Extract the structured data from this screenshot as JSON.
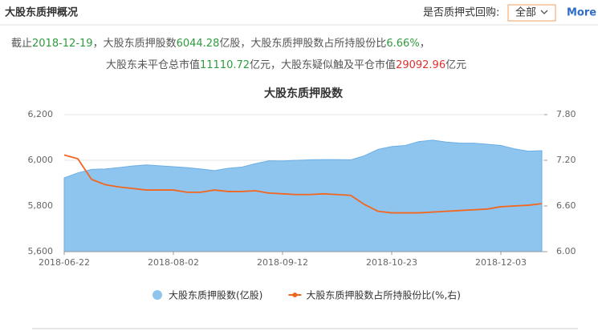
{
  "header": {
    "title": "大股东质押概况",
    "filter_label": "是否质押式回购:",
    "filter_value": "全部",
    "more": "More"
  },
  "summary": {
    "line1": [
      {
        "text": "截止",
        "color": "#555555"
      },
      {
        "text": "2018-12-19",
        "color": "#2e9b3e"
      },
      {
        "text": "，大股东质押股数",
        "color": "#555555"
      },
      {
        "text": "6044.28",
        "color": "#2e9b3e"
      },
      {
        "text": "亿股，大股东质押股数占所持股份比",
        "color": "#555555"
      },
      {
        "text": "6.66%",
        "color": "#2e9b3e"
      },
      {
        "text": "，",
        "color": "#555555"
      }
    ],
    "line2": [
      {
        "text": "大股东未平仓总市值",
        "color": "#555555"
      },
      {
        "text": "11110.72",
        "color": "#2e9b3e"
      },
      {
        "text": "亿元，大股东疑似触及平仓市值",
        "color": "#555555"
      },
      {
        "text": "29092.96",
        "color": "#e03030"
      },
      {
        "text": "亿元",
        "color": "#555555"
      }
    ]
  },
  "chart_data": {
    "type": "line",
    "title": "大股东质押股数",
    "categories": [
      "2018-06-22",
      null,
      null,
      null,
      null,
      null,
      null,
      null,
      "2018-08-02",
      null,
      null,
      null,
      null,
      null,
      null,
      null,
      "2018-09-12",
      null,
      null,
      null,
      null,
      null,
      null,
      null,
      "2018-10-23",
      null,
      null,
      null,
      null,
      null,
      null,
      null,
      "2018-12-03",
      null,
      null,
      null
    ],
    "series": [
      {
        "name": "大股东质押股数(亿股)",
        "type": "area",
        "color": "#8ec5ee",
        "axis": "y",
        "values": [
          5923,
          5945,
          5960,
          5962,
          5968,
          5975,
          5980,
          5976,
          5972,
          5968,
          5962,
          5955,
          5965,
          5970,
          5985,
          5998,
          5997,
          6000,
          6002,
          6003,
          6003,
          6002,
          6020,
          6048,
          6060,
          6065,
          6082,
          6088,
          6080,
          6075,
          6075,
          6070,
          6065,
          6050,
          6040,
          6042
        ]
      },
      {
        "name": "大股东质押股数占所持股份比(%,右)",
        "type": "line",
        "color": "#f2661f",
        "axis": "y2",
        "values": [
          7.27,
          7.22,
          6.95,
          6.88,
          6.85,
          6.83,
          6.81,
          6.81,
          6.81,
          6.78,
          6.78,
          6.81,
          6.79,
          6.79,
          6.8,
          6.77,
          6.76,
          6.75,
          6.75,
          6.76,
          6.75,
          6.74,
          6.62,
          6.53,
          6.51,
          6.51,
          6.51,
          6.52,
          6.53,
          6.54,
          6.55,
          6.56,
          6.59,
          6.6,
          6.61,
          6.63
        ]
      }
    ],
    "ylim": [
      5600,
      6200
    ],
    "yticks": [
      {
        "value": 5600,
        "label": "5,600"
      },
      {
        "value": 5800,
        "label": "5,800"
      },
      {
        "value": 6000,
        "label": "6,000"
      },
      {
        "value": 6200,
        "label": "6,200"
      }
    ],
    "y2lim": [
      6,
      7.8
    ],
    "y2ticks": [
      {
        "value": 6,
        "label": "6.00"
      },
      {
        "value": 6.6,
        "label": "6.60"
      },
      {
        "value": 7.2,
        "label": "7.20"
      },
      {
        "value": 7.8,
        "label": "7.80"
      }
    ],
    "grid": true
  }
}
